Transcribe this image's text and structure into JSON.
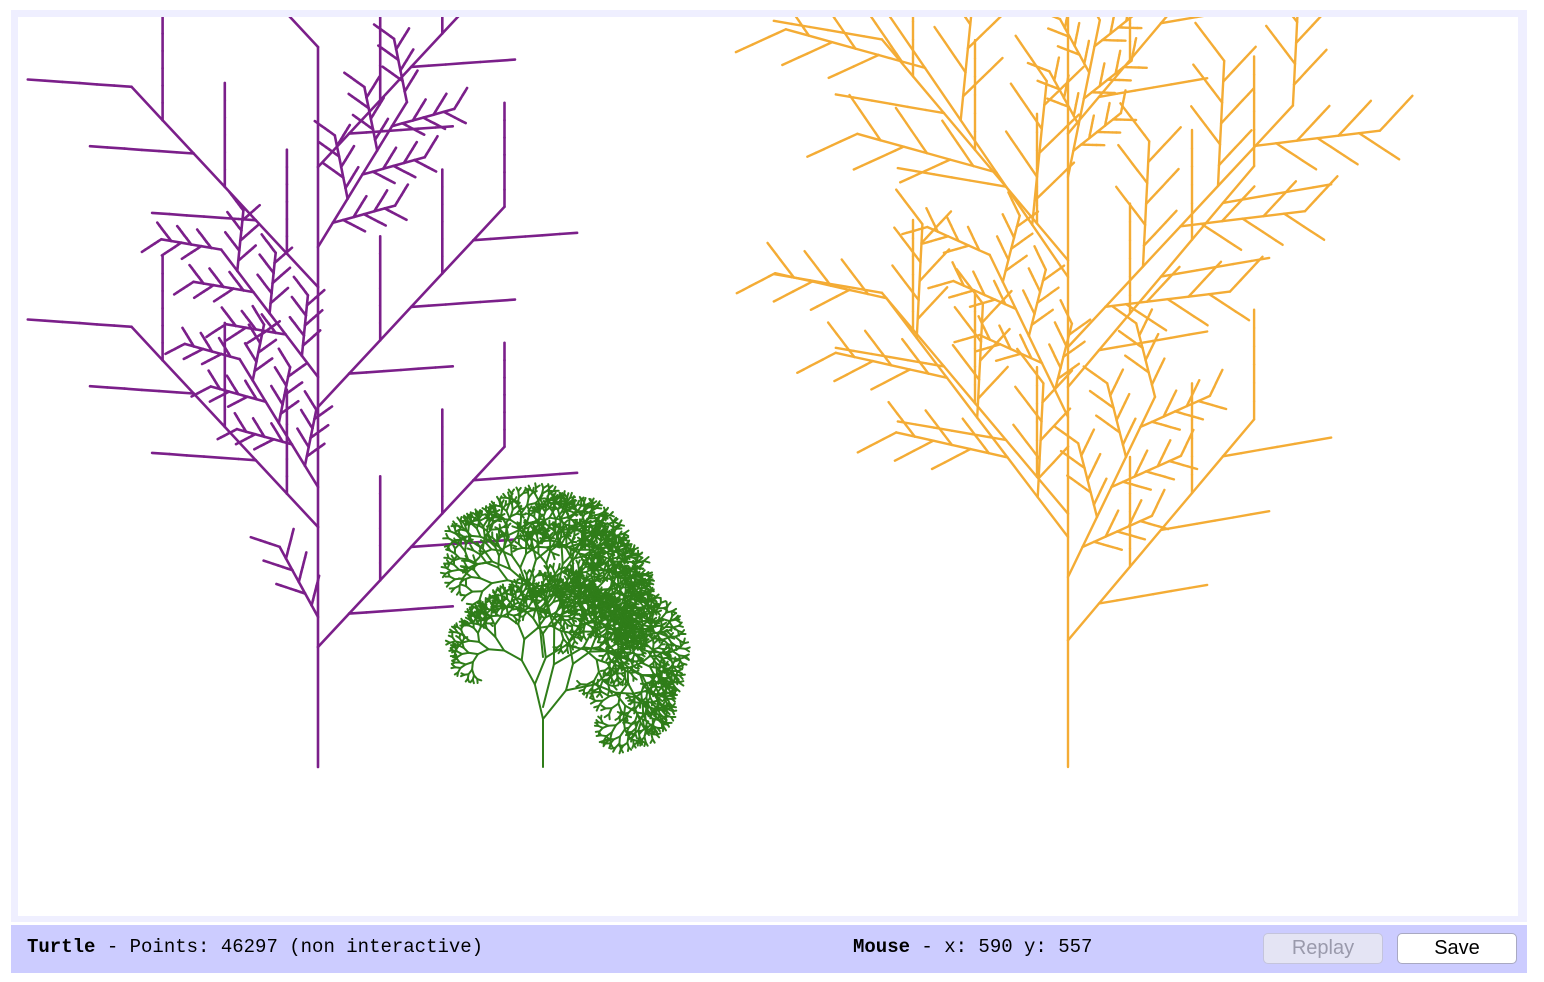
{
  "canvas": {
    "plants": [
      {
        "name": "purple-plant",
        "color": "#7b1f8a"
      },
      {
        "name": "green-plant",
        "color": "#2f7d19"
      },
      {
        "name": "orange-plant",
        "color": "#f4ac35"
      }
    ]
  },
  "statusbar": {
    "turtle_label": "Turtle",
    "turtle_info": " - Points: 46297 (non interactive)",
    "mouse_label": "Mouse",
    "mouse_info": " - x: 590 y: 557",
    "replay_label": "Replay",
    "save_label": "Save"
  }
}
